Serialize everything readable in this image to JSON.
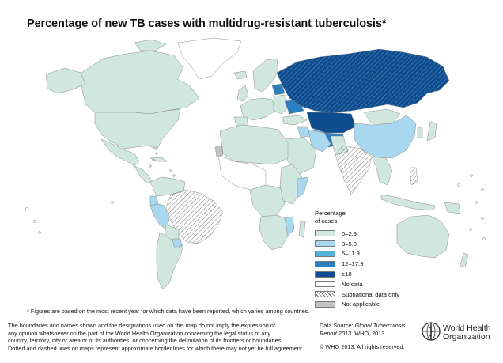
{
  "title": "Percentage of new TB cases with multidrug-resistant tuberculosis*",
  "colors": {
    "c0_2_9": "#cfe7de",
    "c3_5_9": "#a8d8f0",
    "c6_11_9": "#55b2dd",
    "c12_17_9": "#2b7fc0",
    "c18": "#0d4d8f",
    "no_data": "#ffffff",
    "not_applicable": "#c4c4c4",
    "border": "#8a8a8a"
  },
  "legend": {
    "title_line1": "Percentage",
    "title_line2": "of cases",
    "items": [
      {
        "label": "0–2.9",
        "color": "#cfe7de",
        "pattern": "none"
      },
      {
        "label": "3–5.9",
        "color": "#a8d8f0",
        "pattern": "none"
      },
      {
        "label": "6–11.9",
        "color": "#55b2dd",
        "pattern": "none"
      },
      {
        "label": "12–17.9",
        "color": "#2b7fc0",
        "pattern": "none"
      },
      {
        "label": "≥18",
        "color": "#0d4d8f",
        "pattern": "none"
      },
      {
        "label": "No data",
        "color": "#ffffff",
        "pattern": "none"
      },
      {
        "label": "Subnational data only",
        "color": "#ffffff",
        "pattern": "hatch"
      },
      {
        "label": "Not applicable",
        "color": "#c4c4c4",
        "pattern": "none"
      }
    ]
  },
  "footnote": "* Figures are based on the most recent year for which data have been reported, which varies among countries.",
  "disclaimer": {
    "line1": "The boundaries and names shown and the designations used on this map do not imply the expression of",
    "line2": "any opinion whatsoever on the part of the World Health Organization concerning the legal status of any",
    "line3": "country, territory, city or area or of its authorities, or concerning the delimitation of its frontiers or boundaries.",
    "line4": "Dotted and dashed lines on maps represent approximate border lines for which there may not yet be full agreement."
  },
  "source": {
    "prefix": "Data Source: ",
    "report_part1": "Global Tuberculosis",
    "report_part2": "Report 2013",
    "suffix": ". WHO, 2013."
  },
  "copyright": "© WHO 2013. All rights reserved.",
  "who": {
    "line1": "World Health",
    "line2": "Organization"
  }
}
